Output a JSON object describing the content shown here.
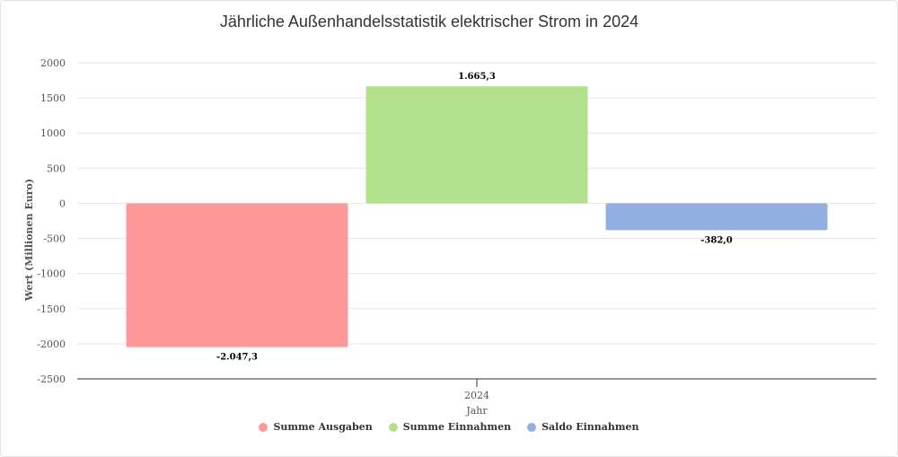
{
  "chart_data": {
    "type": "bar",
    "title": "Jährliche Außenhandelsstatistik elektrischer Strom in 2024",
    "xlabel": "Jahr",
    "ylabel": "Wert (Millionen Euro)",
    "categories": [
      "2024"
    ],
    "ylim": [
      -2500,
      2000
    ],
    "yticks": [
      2000,
      1500,
      1000,
      500,
      0,
      -500,
      -1000,
      -1500,
      -2000,
      -2500
    ],
    "grid": true,
    "legend_position": "bottom",
    "series": [
      {
        "name": "Summe Ausgaben",
        "values": [
          -2047.3
        ],
        "label": "-2.047,3",
        "color": "#ff9999"
      },
      {
        "name": "Summe Einnahmen",
        "values": [
          1665.3
        ],
        "label": "1.665,3",
        "color": "#b3e08c"
      },
      {
        "name": "Saldo Einnahmen",
        "values": [
          -382.0
        ],
        "label": "-382,0",
        "color": "#93aee0"
      }
    ]
  }
}
